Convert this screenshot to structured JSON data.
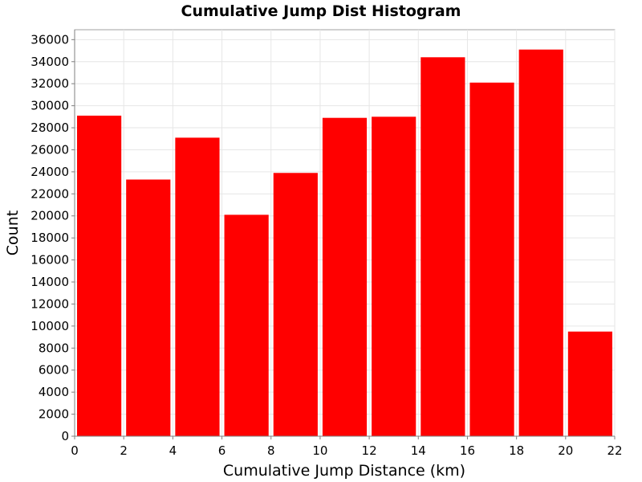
{
  "chart_data": {
    "type": "bar",
    "title": "Cumulative Jump Dist Histogram",
    "xlabel": "Cumulative Jump Distance (km)",
    "ylabel": "Count",
    "bins": [
      {
        "start": 0,
        "end": 2,
        "value": 29100
      },
      {
        "start": 2,
        "end": 4,
        "value": 23300
      },
      {
        "start": 4,
        "end": 6,
        "value": 27100
      },
      {
        "start": 6,
        "end": 8,
        "value": 20100
      },
      {
        "start": 8,
        "end": 10,
        "value": 23900
      },
      {
        "start": 10,
        "end": 12,
        "value": 28900
      },
      {
        "start": 12,
        "end": 14,
        "value": 29000
      },
      {
        "start": 14,
        "end": 16,
        "value": 34400
      },
      {
        "start": 16,
        "end": 18,
        "value": 32100
      },
      {
        "start": 18,
        "end": 20,
        "value": 35100
      },
      {
        "start": 20,
        "end": 22,
        "value": 9500
      }
    ],
    "xlim": [
      0,
      22
    ],
    "ylim": [
      0,
      36900
    ],
    "xticks": [
      "0",
      "2",
      "4",
      "6",
      "8",
      "10",
      "12",
      "14",
      "16",
      "18",
      "20",
      "22"
    ],
    "yticks": [
      "0",
      "2000",
      "4000",
      "6000",
      "8000",
      "10000",
      "12000",
      "14000",
      "16000",
      "18000",
      "20000",
      "22000",
      "24000",
      "26000",
      "28000",
      "30000",
      "32000",
      "34000",
      "36000"
    ],
    "bar_color": "#ff0000",
    "grid": true,
    "legend": "none"
  }
}
